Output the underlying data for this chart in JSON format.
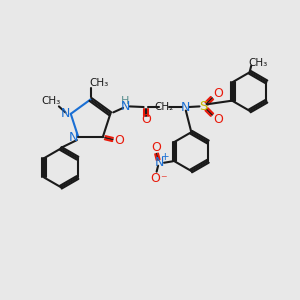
{
  "bg_color": "#e8e8e8",
  "bond_color": "#1a1a1a",
  "n_color": "#1a6fd4",
  "o_color": "#e8190a",
  "s_color": "#c8b400",
  "h_color": "#5a9090",
  "figsize": [
    3.0,
    3.0
  ],
  "dpi": 100,
  "xlim": [
    0,
    10
  ],
  "ylim": [
    0,
    10
  ]
}
